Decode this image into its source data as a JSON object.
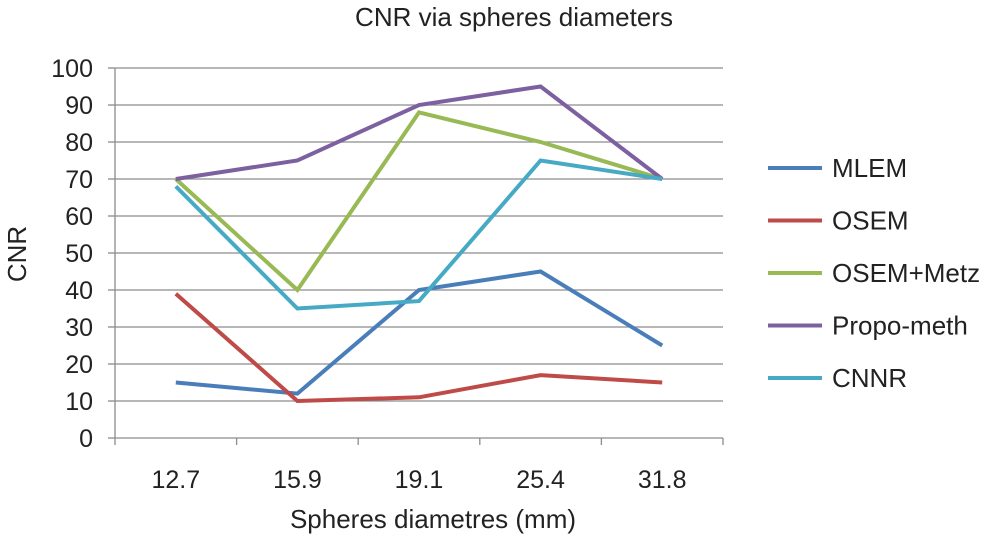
{
  "chart_data": {
    "type": "line",
    "title": "CNR via spheres diameters",
    "xlabel": "Spheres diametres (mm)",
    "ylabel": "CNR",
    "categories": [
      "12.7",
      "15.9",
      "19.1",
      "25.4",
      "31.8"
    ],
    "ylim": [
      0,
      100
    ],
    "yticks": [
      0,
      10,
      20,
      30,
      40,
      50,
      60,
      70,
      80,
      90,
      100
    ],
    "grid": true,
    "legend_position": "right",
    "series": [
      {
        "name": "MLEM",
        "color": "#4A7EBB",
        "values": [
          15,
          12,
          40,
          45,
          25
        ]
      },
      {
        "name": "OSEM",
        "color": "#BE4B48",
        "values": [
          39,
          10,
          11,
          17,
          15
        ]
      },
      {
        "name": "OSEM+Metz",
        "color": "#98B954",
        "values": [
          70,
          40,
          88,
          80,
          70
        ]
      },
      {
        "name": "Propo-meth",
        "color": "#7D60A0",
        "values": [
          70,
          75,
          90,
          95,
          70
        ]
      },
      {
        "name": "CNNR",
        "color": "#46AAC5",
        "values": [
          68,
          35,
          37,
          75,
          70
        ]
      }
    ]
  }
}
